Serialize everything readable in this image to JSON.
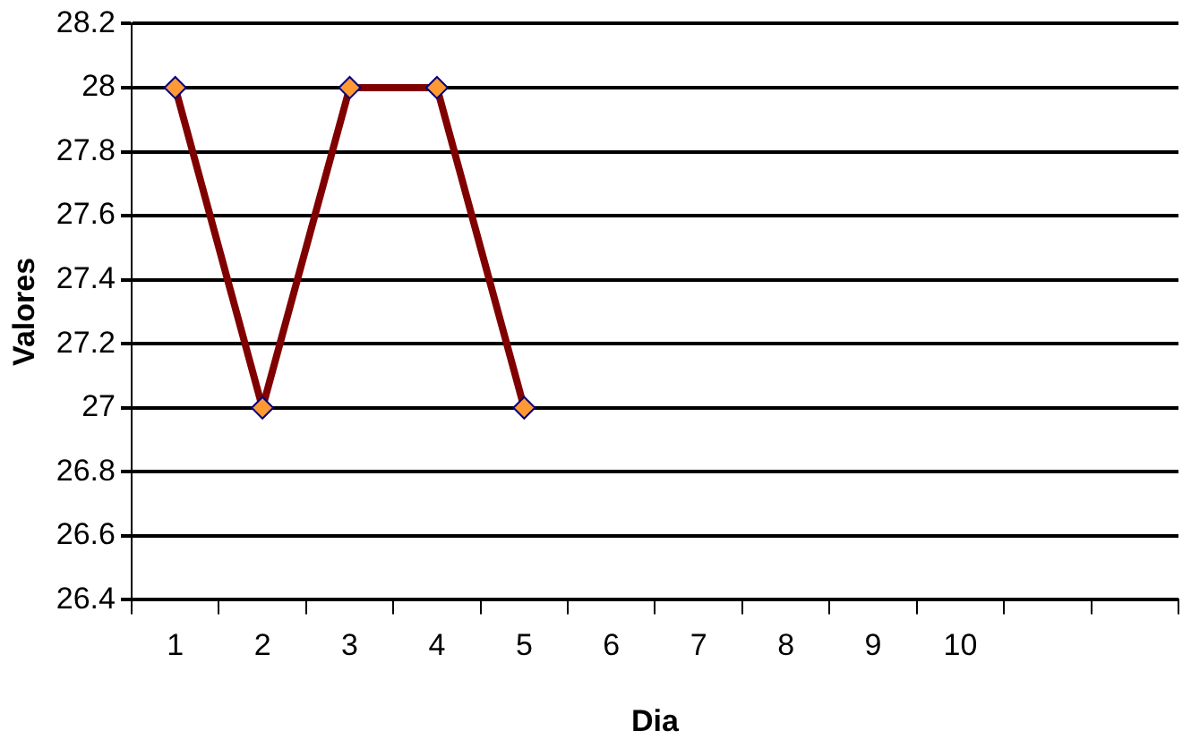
{
  "chart_data": {
    "type": "line",
    "xlabel": "Dia",
    "ylabel": "Valores",
    "categories": [
      "1",
      "2",
      "3",
      "4",
      "5",
      "6",
      "7",
      "8",
      "9",
      "10",
      null,
      null
    ],
    "series": [
      {
        "color": "#800000",
        "values": [
          28,
          27,
          28,
          28,
          27,
          null,
          null,
          null,
          null,
          null,
          null,
          null
        ]
      }
    ],
    "ylim": [
      26.4,
      28.2
    ],
    "yticks": [
      26.4,
      26.6,
      26.8,
      27,
      27.2,
      27.4,
      27.6,
      27.8,
      28,
      28.2
    ],
    "grid": "y",
    "legend": false,
    "marker": "diamond",
    "line_style": "solid"
  }
}
